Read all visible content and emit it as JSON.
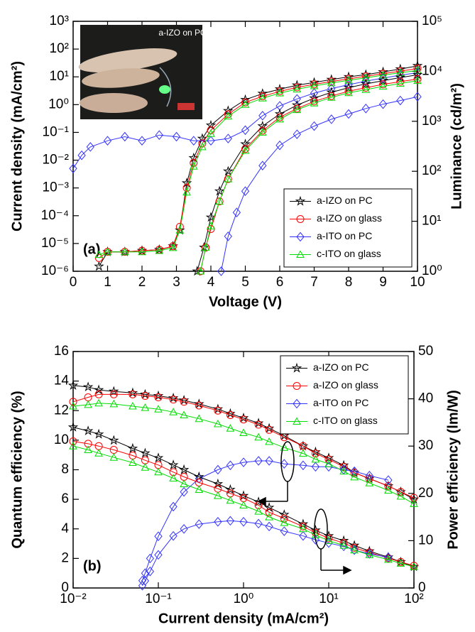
{
  "chart_data": [
    {
      "type": "line",
      "annotation": "(a)",
      "xlabel": "Voltage (V)",
      "ylabel": "Current density (mA/cm²)",
      "y2label": "Luminance (cd/m²)",
      "inset_label": "a-IZO on PC",
      "legend": "lower right",
      "xlim": [
        0,
        10
      ],
      "xticks": [
        0,
        1,
        2,
        3,
        4,
        5,
        6,
        7,
        8,
        9,
        10
      ],
      "ylim": [
        1e-06,
        1000
      ],
      "ylog": true,
      "yticks": [
        {
          "value": 1e-06,
          "label": "10⁻⁶"
        },
        {
          "value": 1e-05,
          "label": "10⁻⁵"
        },
        {
          "value": 0.0001,
          "label": "10⁻⁴"
        },
        {
          "value": 0.001,
          "label": "10⁻³"
        },
        {
          "value": 0.01,
          "label": "10⁻²"
        },
        {
          "value": 0.1,
          "label": "10⁻¹"
        },
        {
          "value": 1,
          "label": "10⁰"
        },
        {
          "value": 10,
          "label": "10¹"
        },
        {
          "value": 100,
          "label": "10²"
        },
        {
          "value": 1000,
          "label": "10³"
        }
      ],
      "y2lim": [
        1,
        100000
      ],
      "y2log": true,
      "y2ticks": [
        {
          "value": 1,
          "label": "10⁰"
        },
        {
          "value": 10,
          "label": "10¹"
        },
        {
          "value": 100,
          "label": "10²"
        },
        {
          "value": 1000,
          "label": "10³"
        },
        {
          "value": 10000,
          "label": "10⁴"
        },
        {
          "value": 100000,
          "label": "10⁵"
        }
      ],
      "series": [
        {
          "name": "a-IZO on PC",
          "color": "#000000",
          "marker": "star",
          "x": [
            0.75,
            1,
            1.5,
            2,
            2.5,
            2.9,
            3.1,
            3.3,
            3.5,
            3.75,
            4,
            4.5,
            5,
            5.5,
            6,
            6.5,
            7,
            7.5,
            8,
            8.5,
            9,
            9.5,
            10
          ],
          "values": [
            1.5e-06,
            5e-06,
            5e-06,
            5.5e-06,
            6e-06,
            8e-06,
            3e-05,
            0.0015,
            0.012,
            0.06,
            0.18,
            0.6,
            1.5,
            2.5,
            3.6,
            5,
            6.3,
            8,
            10,
            12,
            15,
            19,
            25
          ]
        },
        {
          "name": "a-IZO on glass",
          "color": "#ff0000",
          "marker": "circle",
          "x": [
            0.75,
            1,
            1.5,
            2,
            2.5,
            2.9,
            3.1,
            3.3,
            3.5,
            3.75,
            4,
            4.5,
            5,
            5.5,
            6,
            6.5,
            7,
            7.5,
            8,
            8.5,
            9,
            9.5,
            10
          ],
          "values": [
            3e-06,
            5e-06,
            5e-06,
            5.5e-06,
            6e-06,
            8e-06,
            4e-05,
            0.001,
            0.008,
            0.04,
            0.12,
            0.45,
            1.2,
            2,
            3,
            4.2,
            5.4,
            6.8,
            8.5,
            10.5,
            13,
            16,
            20
          ]
        },
        {
          "name": "a-ITO on PC",
          "color": "#3333ff",
          "marker": "diamond",
          "x": [
            0,
            0.25,
            0.5,
            1,
            1.5,
            2,
            2.5,
            3,
            3.5,
            4,
            4.5,
            5,
            5.5,
            6,
            6.5,
            7,
            7.5,
            8,
            8.5,
            9,
            9.5,
            10
          ],
          "values": [
            0.005,
            0.015,
            0.03,
            0.05,
            0.07,
            0.05,
            0.08,
            0.07,
            0.05,
            0.05,
            0.06,
            0.12,
            0.4,
            0.9,
            1.6,
            2.6,
            3.8,
            5.2,
            7,
            9,
            11.5,
            14
          ]
        },
        {
          "name": "c-ITO on glass",
          "color": "#00dd00",
          "marker": "triangle",
          "x": [
            0.75,
            1,
            1.5,
            2,
            2.5,
            2.9,
            3.1,
            3.3,
            3.5,
            3.75,
            4,
            4.5,
            5,
            5.5,
            6,
            6.5,
            7,
            7.5,
            8,
            8.5,
            9,
            9.5,
            10
          ],
          "values": [
            4e-06,
            5e-06,
            5e-06,
            5e-06,
            5.5e-06,
            7e-06,
            3e-05,
            0.0007,
            0.006,
            0.03,
            0.09,
            0.38,
            1,
            1.7,
            2.6,
            3.6,
            4.7,
            6,
            7.5,
            9.2,
            11.5,
            14,
            17
          ]
        },
        {
          "name": "a-IZO on PC",
          "color": "#000000",
          "marker": "star",
          "axis": "y2",
          "x": [
            3.6,
            3.8,
            4,
            4.25,
            4.5,
            5,
            5.5,
            6,
            6.5,
            7,
            7.5,
            8,
            8.5,
            9,
            9.5,
            10
          ],
          "values": [
            1,
            3,
            12,
            40,
            100,
            350,
            800,
            1400,
            2100,
            2900,
            3800,
            4700,
            5600,
            6500,
            7500,
            8500
          ]
        },
        {
          "name": "a-IZO on glass",
          "color": "#ff0000",
          "marker": "circle",
          "axis": "y2",
          "x": [
            3.7,
            3.85,
            4,
            4.25,
            4.5,
            5,
            5.5,
            6,
            6.5,
            7,
            7.5,
            8,
            8.5,
            9,
            9.5,
            10
          ],
          "values": [
            1,
            3,
            7,
            25,
            70,
            280,
            650,
            1200,
            1800,
            2500,
            3200,
            4000,
            4700,
            5500,
            6200,
            7000
          ]
        },
        {
          "name": "a-ITO on PC",
          "color": "#3333ff",
          "marker": "diamond",
          "axis": "y2",
          "x": [
            4.3,
            4.5,
            4.75,
            5,
            5.5,
            6,
            6.5,
            7,
            7.5,
            8,
            8.5,
            9,
            9.5,
            10
          ],
          "values": [
            1,
            5,
            15,
            40,
            130,
            330,
            550,
            800,
            1100,
            1400,
            1800,
            2200,
            2600,
            3100
          ]
        },
        {
          "name": "c-ITO on glass",
          "color": "#00dd00",
          "marker": "triangle",
          "axis": "y2",
          "x": [
            3.7,
            3.85,
            4,
            4.25,
            4.5,
            5,
            5.5,
            6,
            6.5,
            7,
            7.5,
            8,
            8.5,
            9,
            9.5,
            10
          ],
          "values": [
            1,
            3,
            8,
            25,
            70,
            260,
            600,
            1100,
            1700,
            2300,
            3000,
            3700,
            4300,
            5000,
            5700,
            6500
          ]
        }
      ]
    },
    {
      "type": "line",
      "annotation": "(b)",
      "xlabel": "Current density (mA/cm²)",
      "ylabel": "Quantum efficiency (%)",
      "y2label": "Power efficiency (lm/W)",
      "legend": "upper right",
      "xlim": [
        0.01,
        100
      ],
      "xlog": true,
      "xticks": [
        {
          "value": 0.01,
          "label": "10⁻²"
        },
        {
          "value": 0.1,
          "label": "10⁻¹"
        },
        {
          "value": 1,
          "label": "10⁰"
        },
        {
          "value": 10,
          "label": "10¹"
        },
        {
          "value": 100,
          "label": "10²"
        }
      ],
      "ylim": [
        0,
        16
      ],
      "yticks": [
        0,
        2,
        4,
        6,
        8,
        10,
        12,
        14,
        16
      ],
      "y2lim": [
        0,
        50
      ],
      "y2ticks": [
        0,
        10,
        20,
        30,
        40,
        50
      ],
      "series": [
        {
          "name": "a-IZO on PC",
          "color": "#000000",
          "marker": "star",
          "x": [
            0.01,
            0.015,
            0.02,
            0.03,
            0.05,
            0.07,
            0.1,
            0.15,
            0.2,
            0.3,
            0.5,
            0.7,
            1,
            1.5,
            2,
            3,
            5,
            7,
            10,
            15,
            20,
            30,
            50,
            70,
            100
          ],
          "values": [
            13.7,
            13.6,
            13.4,
            13.3,
            13.2,
            13.1,
            13.0,
            12.85,
            12.7,
            12.45,
            12.1,
            11.8,
            11.5,
            11.15,
            10.8,
            10.3,
            9.6,
            9.2,
            8.8,
            8.3,
            7.8,
            7.4,
            6.9,
            6.5,
            6.0
          ]
        },
        {
          "name": "a-IZO on glass",
          "color": "#ff0000",
          "marker": "circle",
          "x": [
            0.01,
            0.015,
            0.02,
            0.03,
            0.05,
            0.07,
            0.1,
            0.15,
            0.2,
            0.3,
            0.5,
            0.7,
            1,
            1.5,
            2,
            3,
            5,
            7,
            10,
            15,
            20,
            30,
            50,
            70,
            100
          ],
          "values": [
            12.6,
            12.9,
            13.1,
            13.1,
            13.1,
            13.0,
            12.9,
            12.75,
            12.6,
            12.35,
            12.0,
            11.7,
            11.4,
            11.05,
            10.7,
            10.2,
            9.6,
            9.1,
            8.7,
            8.2,
            7.8,
            7.4,
            6.9,
            6.5,
            6.1
          ]
        },
        {
          "name": "a-ITO on PC",
          "color": "#3333ff",
          "marker": "diamond",
          "x": [
            0.065,
            0.07,
            0.08,
            0.1,
            0.15,
            0.2,
            0.3,
            0.5,
            0.7,
            1,
            1.5,
            2,
            3,
            5,
            7,
            10,
            15,
            20,
            30,
            50
          ],
          "values": [
            0.5,
            1,
            2,
            3.5,
            5.5,
            6.5,
            7.4,
            8.0,
            8.3,
            8.5,
            8.6,
            8.6,
            8.4,
            8.3,
            8.2,
            8.2,
            8.0,
            7.9,
            7.6,
            7.3
          ]
        },
        {
          "name": "c-ITO on glass",
          "color": "#00dd00",
          "marker": "triangle",
          "x": [
            0.01,
            0.015,
            0.02,
            0.03,
            0.05,
            0.07,
            0.1,
            0.15,
            0.2,
            0.3,
            0.5,
            0.7,
            1,
            1.5,
            2,
            3,
            5,
            7,
            10,
            15,
            20,
            30,
            50,
            70,
            100
          ],
          "values": [
            12.3,
            12.4,
            12.5,
            12.45,
            12.3,
            12.2,
            12.1,
            11.9,
            11.7,
            11.45,
            11.1,
            10.8,
            10.5,
            10.2,
            9.9,
            9.5,
            9.1,
            8.7,
            8.4,
            7.9,
            7.5,
            7.1,
            6.6,
            6.2,
            5.7
          ]
        },
        {
          "name": "a-IZO on PC",
          "color": "#000000",
          "marker": "star",
          "axis": "y2",
          "x": [
            0.01,
            0.015,
            0.02,
            0.03,
            0.05,
            0.07,
            0.1,
            0.15,
            0.2,
            0.3,
            0.5,
            0.7,
            1,
            1.5,
            2,
            3,
            5,
            7,
            10,
            15,
            20,
            30,
            50,
            70,
            100
          ],
          "values": [
            34,
            33.2,
            32.5,
            31.2,
            29.5,
            28.5,
            27.5,
            26,
            25,
            23.5,
            22,
            20.8,
            19.5,
            18.2,
            17,
            15.5,
            13.5,
            12.2,
            11,
            10,
            9,
            7.8,
            6.5,
            5.5,
            4.5
          ]
        },
        {
          "name": "a-IZO on glass",
          "color": "#ff0000",
          "marker": "circle",
          "axis": "y2",
          "x": [
            0.01,
            0.015,
            0.02,
            0.03,
            0.05,
            0.07,
            0.1,
            0.15,
            0.2,
            0.3,
            0.5,
            0.7,
            1,
            1.5,
            2,
            3,
            5,
            7,
            10,
            15,
            20,
            30,
            50,
            70,
            100
          ],
          "values": [
            31,
            30.5,
            30,
            29.2,
            28,
            27,
            26,
            24.5,
            23.5,
            22.3,
            21,
            20,
            19,
            17.5,
            16,
            14.7,
            13,
            11.7,
            10.5,
            9.5,
            8.5,
            7.5,
            6.3,
            5.5,
            4.7
          ]
        },
        {
          "name": "a-ITO on PC",
          "color": "#3333ff",
          "marker": "diamond",
          "axis": "y2",
          "x": [
            0.065,
            0.07,
            0.08,
            0.1,
            0.15,
            0.2,
            0.3,
            0.5,
            0.7,
            1,
            1.5,
            2,
            3,
            5,
            7,
            10,
            15,
            20,
            30,
            50
          ],
          "values": [
            0.5,
            1.5,
            3.5,
            7,
            11,
            12.5,
            13.5,
            14,
            14.2,
            14,
            13.6,
            13,
            12,
            11,
            10.2,
            9.5,
            8.8,
            8,
            7.2,
            6.5
          ]
        },
        {
          "name": "c-ITO on glass",
          "color": "#00dd00",
          "marker": "triangle",
          "axis": "y2",
          "x": [
            0.01,
            0.015,
            0.02,
            0.03,
            0.05,
            0.07,
            0.1,
            0.15,
            0.2,
            0.3,
            0.5,
            0.7,
            1,
            1.5,
            2,
            3,
            5,
            7,
            10,
            15,
            20,
            30,
            50,
            70,
            100
          ],
          "values": [
            30,
            29.2,
            28.5,
            27.6,
            26.5,
            25.5,
            24.5,
            23.2,
            22,
            20.8,
            19.5,
            18.5,
            17.5,
            16.2,
            15,
            13.8,
            12.5,
            11.2,
            10,
            9,
            8,
            7,
            6,
            5.2,
            4.5
          ]
        }
      ]
    }
  ]
}
